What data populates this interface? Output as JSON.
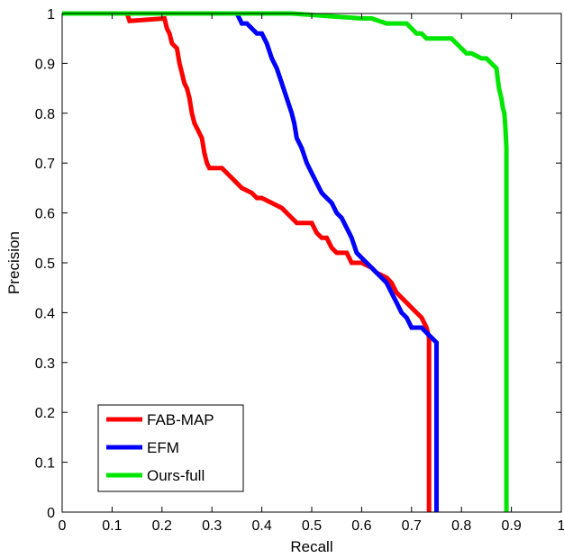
{
  "chart_data": {
    "type": "line",
    "title": "",
    "xlabel": "Recall",
    "ylabel": "Precision",
    "xlim": [
      0,
      1
    ],
    "ylim": [
      0,
      1
    ],
    "xticks": [
      "0",
      "0.1",
      "0.2",
      "0.3",
      "0.4",
      "0.5",
      "0.6",
      "0.7",
      "0.8",
      "0.9",
      "1"
    ],
    "yticks": [
      "0",
      "0.1",
      "0.2",
      "0.3",
      "0.4",
      "0.5",
      "0.6",
      "0.7",
      "0.8",
      "0.9",
      "1"
    ],
    "grid": false,
    "legend_position": "bottom-left",
    "series": [
      {
        "name": "FAB-MAP",
        "color": "#ff0000",
        "x": [
          0.0,
          0.13,
          0.135,
          0.205,
          0.21,
          0.215,
          0.22,
          0.23,
          0.235,
          0.24,
          0.245,
          0.25,
          0.255,
          0.26,
          0.265,
          0.27,
          0.28,
          0.285,
          0.29,
          0.295,
          0.3,
          0.32,
          0.33,
          0.34,
          0.36,
          0.38,
          0.39,
          0.4,
          0.42,
          0.44,
          0.45,
          0.46,
          0.47,
          0.48,
          0.5,
          0.51,
          0.52,
          0.53,
          0.54,
          0.55,
          0.56,
          0.57,
          0.58,
          0.6,
          0.62,
          0.63,
          0.65,
          0.66,
          0.67,
          0.69,
          0.7,
          0.71,
          0.72,
          0.73,
          0.735,
          0.735
        ],
        "y": [
          1.0,
          1.0,
          0.985,
          0.99,
          0.97,
          0.96,
          0.94,
          0.93,
          0.9,
          0.88,
          0.86,
          0.85,
          0.83,
          0.8,
          0.78,
          0.77,
          0.75,
          0.72,
          0.7,
          0.69,
          0.69,
          0.69,
          0.68,
          0.67,
          0.65,
          0.64,
          0.63,
          0.63,
          0.62,
          0.61,
          0.6,
          0.59,
          0.58,
          0.58,
          0.58,
          0.56,
          0.55,
          0.55,
          0.53,
          0.52,
          0.52,
          0.52,
          0.5,
          0.5,
          0.49,
          0.48,
          0.47,
          0.46,
          0.44,
          0.42,
          0.41,
          0.4,
          0.39,
          0.37,
          0.35,
          0.0
        ]
      },
      {
        "name": "EFM",
        "color": "#0000ff",
        "x": [
          0.0,
          0.35,
          0.355,
          0.36,
          0.37,
          0.38,
          0.39,
          0.4,
          0.41,
          0.42,
          0.43,
          0.44,
          0.45,
          0.46,
          0.465,
          0.47,
          0.48,
          0.49,
          0.5,
          0.51,
          0.52,
          0.53,
          0.54,
          0.55,
          0.56,
          0.57,
          0.58,
          0.59,
          0.6,
          0.61,
          0.62,
          0.63,
          0.64,
          0.65,
          0.66,
          0.67,
          0.68,
          0.69,
          0.7,
          0.72,
          0.73,
          0.74,
          0.75,
          0.75
        ],
        "y": [
          1.0,
          1.0,
          0.99,
          0.98,
          0.98,
          0.97,
          0.96,
          0.96,
          0.94,
          0.91,
          0.89,
          0.86,
          0.83,
          0.8,
          0.78,
          0.75,
          0.73,
          0.7,
          0.68,
          0.66,
          0.64,
          0.63,
          0.62,
          0.6,
          0.59,
          0.57,
          0.55,
          0.52,
          0.51,
          0.5,
          0.49,
          0.48,
          0.47,
          0.46,
          0.44,
          0.42,
          0.4,
          0.39,
          0.37,
          0.37,
          0.36,
          0.35,
          0.34,
          0.0
        ]
      },
      {
        "name": "Ours-full",
        "color": "#00e600",
        "x": [
          0.0,
          0.46,
          0.6,
          0.62,
          0.65,
          0.69,
          0.7,
          0.71,
          0.72,
          0.73,
          0.75,
          0.78,
          0.8,
          0.81,
          0.82,
          0.84,
          0.85,
          0.86,
          0.87,
          0.875,
          0.88,
          0.883,
          0.886,
          0.888,
          0.89,
          0.89
        ],
        "y": [
          1.0,
          1.0,
          0.99,
          0.99,
          0.98,
          0.98,
          0.97,
          0.96,
          0.96,
          0.95,
          0.95,
          0.95,
          0.93,
          0.92,
          0.92,
          0.91,
          0.91,
          0.9,
          0.89,
          0.85,
          0.83,
          0.81,
          0.8,
          0.77,
          0.73,
          0.0
        ]
      }
    ]
  }
}
